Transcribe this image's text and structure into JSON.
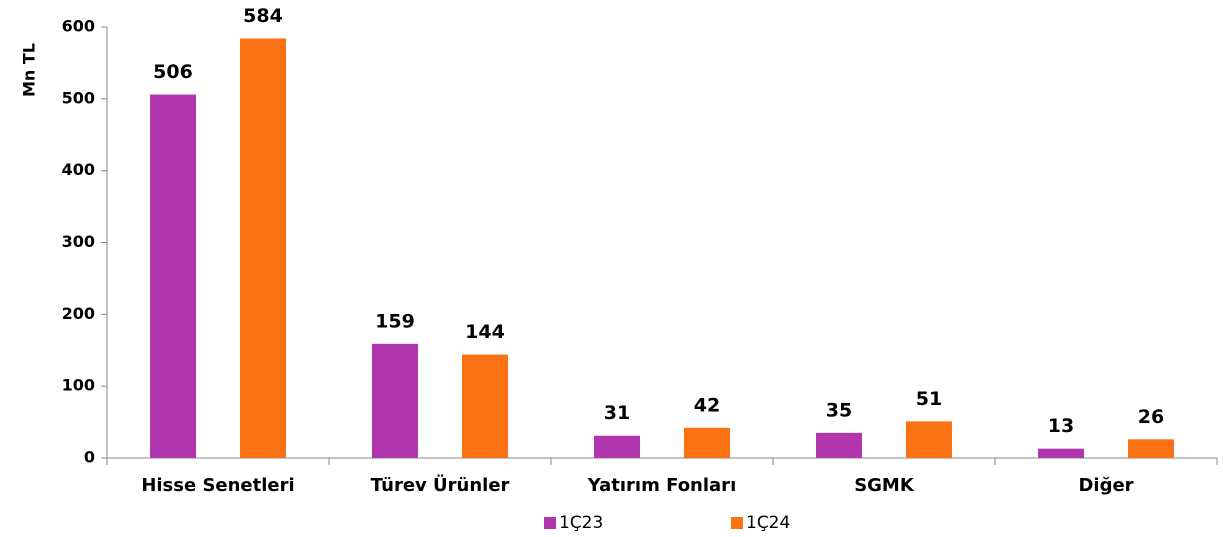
{
  "chart_data": {
    "type": "bar",
    "y_label": "Mn TL",
    "categories": [
      "Hisse Senetleri",
      "Türev Ürünler",
      "Yatırım Fonları",
      "SGMK",
      "Diğer"
    ],
    "series": [
      {
        "name": "1Ç23",
        "color": "#b135ad",
        "values": [
          506,
          159,
          31,
          35,
          13
        ]
      },
      {
        "name": "1Ç24",
        "color": "#fb7214",
        "values": [
          584,
          144,
          42,
          51,
          26
        ]
      }
    ],
    "ylim": [
      0,
      600
    ],
    "yticks": [
      0,
      100,
      200,
      300,
      400,
      500,
      600
    ],
    "grid": false,
    "legend": "bottom"
  }
}
